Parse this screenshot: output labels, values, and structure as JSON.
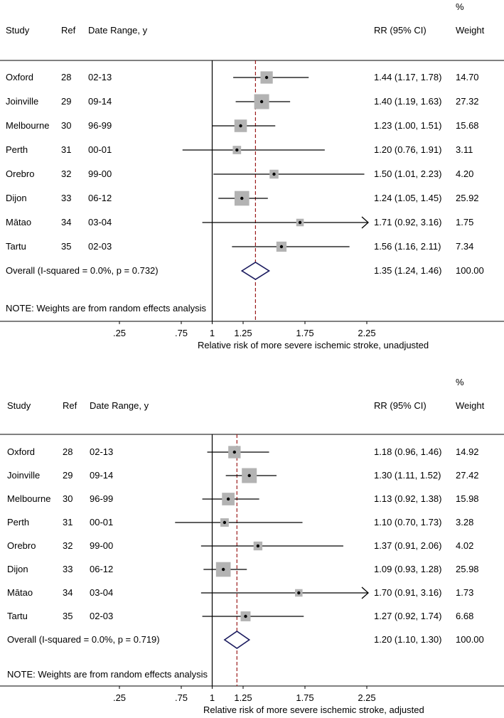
{
  "colors": {
    "box": "#b3b3b3",
    "point": "#000000",
    "ref_line": "#9b1c1c",
    "diamond": "#1a1a5e"
  },
  "chart_data": [
    {
      "type": "forest",
      "columns": {
        "study": "Study",
        "ref": "Ref",
        "date": "Date Range, y",
        "rr": "RR (95% CI)",
        "weight_top": "%",
        "weight": "Weight"
      },
      "xlabel": "Relative risk of more severe ischemic stroke, unadjusted",
      "x_ticks": [
        ".25",
        ".75",
        "1",
        "1.25",
        "1.75",
        "2.25"
      ],
      "x_tick_values": [
        0.25,
        0.75,
        1,
        1.25,
        1.75,
        2.25
      ],
      "null_line": 1,
      "rows": [
        {
          "study": "Oxford",
          "ref": "28",
          "date": "02-13",
          "rr": 1.44,
          "lo": 1.17,
          "hi": 1.78,
          "ci_text": "1.44 (1.17, 1.78)",
          "weight": "14.70"
        },
        {
          "study": "Joinville",
          "ref": "29",
          "date": "09-14",
          "rr": 1.4,
          "lo": 1.19,
          "hi": 1.63,
          "ci_text": "1.40 (1.19, 1.63)",
          "weight": "27.32"
        },
        {
          "study": "Melbourne",
          "ref": "30",
          "date": "96-99",
          "rr": 1.23,
          "lo": 1.0,
          "hi": 1.51,
          "ci_text": "1.23 (1.00, 1.51)",
          "weight": "15.68"
        },
        {
          "study": "Perth",
          "ref": "31",
          "date": "00-01",
          "rr": 1.2,
          "lo": 0.76,
          "hi": 1.91,
          "ci_text": "1.20 (0.76, 1.91)",
          "weight": "3.11"
        },
        {
          "study": "Orebro",
          "ref": "32",
          "date": "99-00",
          "rr": 1.5,
          "lo": 1.01,
          "hi": 2.23,
          "ci_text": "1.50 (1.01, 2.23)",
          "weight": "4.20"
        },
        {
          "study": "Dijon",
          "ref": "33",
          "date": "06-12",
          "rr": 1.24,
          "lo": 1.05,
          "hi": 1.45,
          "ci_text": "1.24 (1.05, 1.45)",
          "weight": "25.92"
        },
        {
          "study": "Mātao",
          "ref": "34",
          "date": "03-04",
          "rr": 1.71,
          "lo": 0.92,
          "hi": 3.16,
          "ci_text": "1.71 (0.92, 3.16)",
          "weight": "1.75"
        },
        {
          "study": "Tartu",
          "ref": "35",
          "date": "02-03",
          "rr": 1.56,
          "lo": 1.16,
          "hi": 2.11,
          "ci_text": "1.56 (1.16, 2.11)",
          "weight": "7.34"
        }
      ],
      "overall": {
        "label": "Overall  (I-squared = 0.0%, p = 0.732)",
        "rr": 1.35,
        "lo": 1.24,
        "hi": 1.46,
        "ci_text": "1.35 (1.24, 1.46)",
        "weight": "100.00"
      },
      "note": "NOTE: Weights are from random effects analysis"
    },
    {
      "type": "forest",
      "columns": {
        "study": "Study",
        "ref": "Ref",
        "date": "Date Range, y",
        "rr": "RR (95% CI)",
        "weight_top": "%",
        "weight": "Weight"
      },
      "xlabel": "Relative risk of more severe ischemic stroke, adjusted",
      "x_ticks": [
        ".25",
        ".75",
        "1",
        "1.25",
        "1.75",
        "2.25"
      ],
      "x_tick_values": [
        0.25,
        0.75,
        1,
        1.25,
        1.75,
        2.25
      ],
      "null_line": 1,
      "rows": [
        {
          "study": "Oxford",
          "ref": "28",
          "date": "02-13",
          "rr": 1.18,
          "lo": 0.96,
          "hi": 1.46,
          "ci_text": "1.18 (0.96, 1.46)",
          "weight": "14.92"
        },
        {
          "study": "Joinville",
          "ref": "29",
          "date": "09-14",
          "rr": 1.3,
          "lo": 1.11,
          "hi": 1.52,
          "ci_text": "1.30 (1.11, 1.52)",
          "weight": "27.42"
        },
        {
          "study": "Melbourne",
          "ref": "30",
          "date": "96-99",
          "rr": 1.13,
          "lo": 0.92,
          "hi": 1.38,
          "ci_text": "1.13 (0.92, 1.38)",
          "weight": "15.98"
        },
        {
          "study": "Perth",
          "ref": "31",
          "date": "00-01",
          "rr": 1.1,
          "lo": 0.7,
          "hi": 1.73,
          "ci_text": "1.10 (0.70, 1.73)",
          "weight": "3.28"
        },
        {
          "study": "Orebro",
          "ref": "32",
          "date": "99-00",
          "rr": 1.37,
          "lo": 0.91,
          "hi": 2.06,
          "ci_text": "1.37 (0.91, 2.06)",
          "weight": "4.02"
        },
        {
          "study": "Dijon",
          "ref": "33",
          "date": "06-12",
          "rr": 1.09,
          "lo": 0.93,
          "hi": 1.28,
          "ci_text": "1.09 (0.93, 1.28)",
          "weight": "25.98"
        },
        {
          "study": "Mātao",
          "ref": "34",
          "date": "03-04",
          "rr": 1.7,
          "lo": 0.91,
          "hi": 3.16,
          "ci_text": "1.70 (0.91, 3.16)",
          "weight": "1.73"
        },
        {
          "study": "Tartu",
          "ref": "35",
          "date": "02-03",
          "rr": 1.27,
          "lo": 0.92,
          "hi": 1.74,
          "ci_text": "1.27 (0.92, 1.74)",
          "weight": "6.68"
        }
      ],
      "overall": {
        "label": "Overall  (I-squared = 0.0%, p = 0.719)",
        "rr": 1.2,
        "lo": 1.1,
        "hi": 1.3,
        "ci_text": "1.20 (1.10, 1.30)",
        "weight": "100.00"
      },
      "note": "NOTE: Weights are from random effects analysis"
    }
  ]
}
